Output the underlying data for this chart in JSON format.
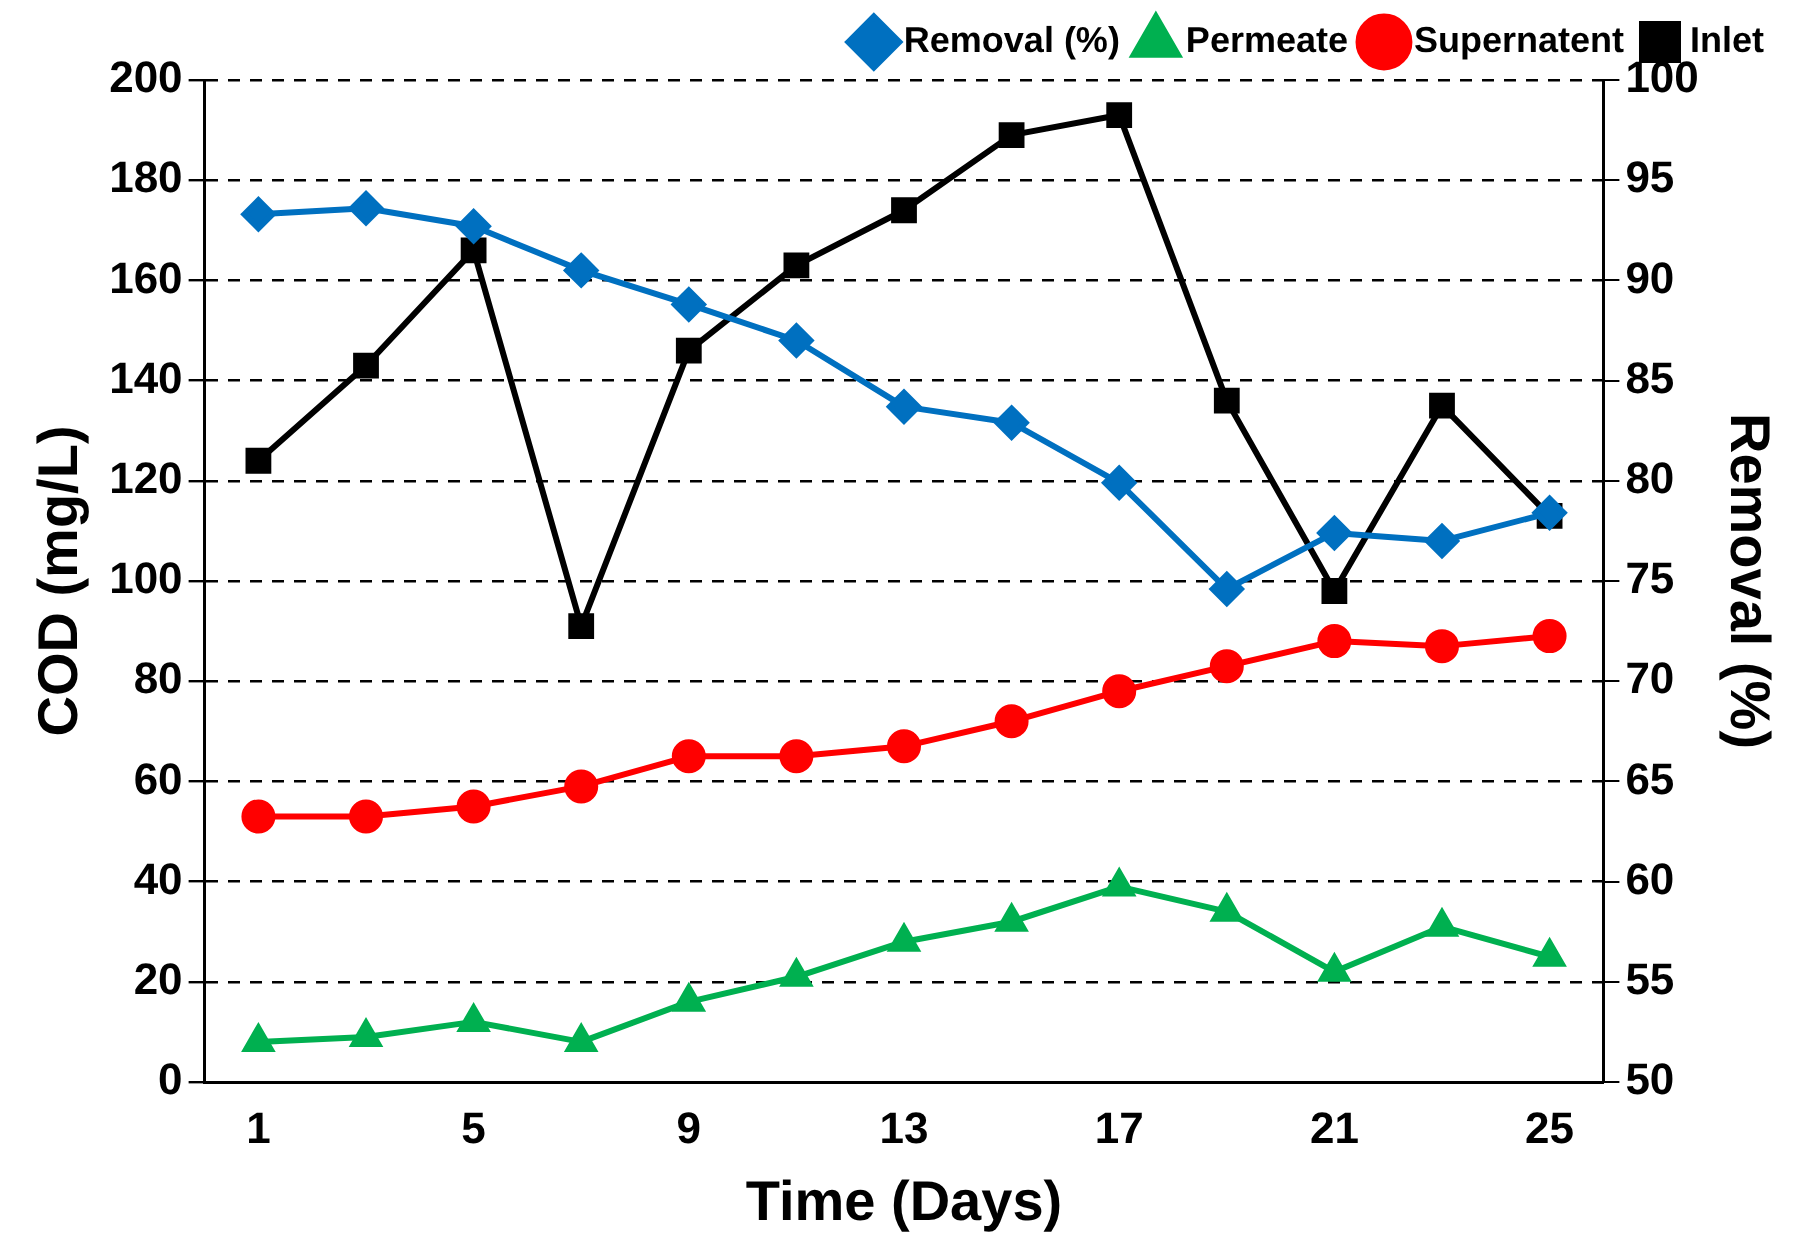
{
  "chart_data": {
    "type": "line",
    "xlabel": "Time (Days)",
    "ylabel": "COD (mg/L)",
    "y2label": "Removal (%)",
    "categories": [
      "1",
      null,
      "5",
      null,
      "9",
      null,
      "13",
      null,
      "17",
      null,
      "21",
      null,
      "25"
    ],
    "series": [
      {
        "name": "Inlet",
        "color": "#000000",
        "marker": "square",
        "values": [
          124,
          143,
          166,
          91,
          146,
          163,
          174,
          189,
          193,
          136,
          98,
          135,
          113
        ]
      },
      {
        "name": "Supernatent",
        "color": "#ff0000",
        "marker": "circle",
        "values": [
          53,
          53,
          55,
          59,
          65,
          65,
          67,
          72,
          78,
          83,
          88,
          87,
          89
        ]
      },
      {
        "name": "Permeate",
        "color": "#00b050",
        "marker": "triangle",
        "values": [
          8,
          9,
          12,
          8,
          16,
          21,
          28,
          32,
          39,
          34,
          22,
          31,
          25
        ]
      },
      {
        "name": "Removal (%)",
        "color": "#0070c0",
        "marker": "diamond",
        "axis": "y2",
        "values": [
          93.3,
          93.6,
          92.7,
          90.5,
          88.8,
          87,
          83.7,
          82.9,
          79.9,
          74.6,
          77.4,
          77,
          78.4
        ]
      }
    ],
    "ylim": [
      0,
      200
    ],
    "yticks": [
      0,
      20,
      40,
      60,
      80,
      100,
      120,
      140,
      160,
      180,
      200
    ],
    "y2lim": [
      50,
      100
    ],
    "y2ticks": [
      50,
      55,
      60,
      65,
      70,
      75,
      80,
      85,
      90,
      95,
      100
    ],
    "grid": "y",
    "legend": "top right",
    "line_style": "solid"
  }
}
